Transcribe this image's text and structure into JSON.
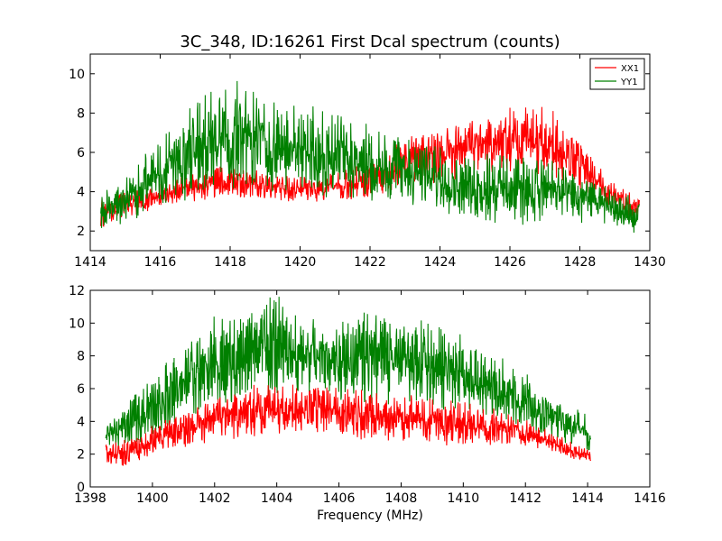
{
  "figure": {
    "title": "3C_348, ID:16261 First Dcal spectrum (counts)"
  },
  "chart_data": [
    {
      "type": "line",
      "title": "3C_348, ID:16261 First Dcal spectrum (counts)",
      "xlabel": "",
      "ylabel": "",
      "xlim": [
        1414,
        1430
      ],
      "ylim": [
        1,
        11
      ],
      "xticks": [
        1414,
        1416,
        1418,
        1420,
        1422,
        1424,
        1426,
        1428,
        1430
      ],
      "yticks": [
        2,
        4,
        6,
        8,
        10
      ],
      "legend": {
        "placement": "top-right",
        "entries": [
          "XX1",
          "YY1"
        ]
      },
      "series": [
        {
          "name": "XX1",
          "color": "#ff0000",
          "x_range": [
            1414.3,
            1429.7
          ],
          "envelope_x": [
            1414.3,
            1415,
            1416,
            1417,
            1418,
            1419,
            1420,
            1421,
            1422,
            1423,
            1424,
            1425,
            1426,
            1427,
            1428,
            1429,
            1429.7
          ],
          "envelope_low": [
            2.2,
            2.5,
            3.2,
            3.5,
            3.7,
            3.6,
            3.4,
            3.5,
            3.7,
            4.0,
            4.5,
            4.8,
            5.0,
            4.8,
            4.0,
            3.0,
            2.6
          ],
          "envelope_high": [
            3.8,
            4.0,
            4.5,
            5.0,
            5.4,
            5.0,
            4.8,
            5.0,
            5.5,
            6.8,
            7.3,
            7.8,
            8.3,
            8.6,
            6.5,
            4.5,
            3.7
          ]
        },
        {
          "name": "YY1",
          "color": "#008000",
          "x_range": [
            1414.3,
            1429.7
          ],
          "envelope_x": [
            1414.3,
            1415,
            1416,
            1417,
            1418,
            1419,
            1420,
            1421,
            1422,
            1423,
            1424,
            1425,
            1426,
            1427,
            1428,
            1429,
            1429.7
          ],
          "envelope_low": [
            2.0,
            2.4,
            3.0,
            3.6,
            4.0,
            4.0,
            3.8,
            3.6,
            3.5,
            3.3,
            3.0,
            2.4,
            2.2,
            2.4,
            2.4,
            2.3,
            1.7
          ],
          "envelope_high": [
            4.0,
            5.0,
            6.8,
            8.6,
            9.8,
            9.3,
            8.5,
            8.1,
            7.4,
            6.8,
            6.3,
            6.2,
            6.0,
            5.8,
            5.0,
            4.0,
            3.7
          ]
        }
      ]
    },
    {
      "type": "line",
      "title": "",
      "xlabel": "Frequency (MHz)",
      "ylabel": "",
      "xlim": [
        1398,
        1416
      ],
      "ylim": [
        0,
        12
      ],
      "xticks": [
        1398,
        1400,
        1402,
        1404,
        1406,
        1408,
        1410,
        1412,
        1414,
        1416
      ],
      "yticks": [
        0,
        2,
        4,
        6,
        8,
        10,
        12
      ],
      "series": [
        {
          "name": "YY1",
          "color": "#008000",
          "x_range": [
            1398.5,
            1414.1
          ],
          "envelope_x": [
            1398.5,
            1399,
            1400,
            1401,
            1402,
            1403,
            1404,
            1405,
            1406,
            1407,
            1408,
            1409,
            1410,
            1411,
            1412,
            1413,
            1414.1
          ],
          "envelope_low": [
            2.0,
            2.2,
            3.0,
            4.0,
            4.8,
            5.2,
            5.4,
            5.3,
            5.2,
            5.1,
            5.0,
            4.8,
            4.5,
            4.0,
            3.5,
            2.8,
            2.0
          ],
          "envelope_high": [
            4.2,
            5.0,
            6.6,
            8.8,
            10.5,
            10.8,
            11.8,
            10.5,
            10.8,
            10.8,
            10.6,
            10.0,
            9.4,
            8.2,
            7.0,
            5.5,
            4.4
          ]
        },
        {
          "name": "XX1",
          "color": "#ff0000",
          "x_range": [
            1398.5,
            1414.1
          ],
          "envelope_x": [
            1398.5,
            1399,
            1400,
            1401,
            1402,
            1403,
            1404,
            1405,
            1406,
            1407,
            1408,
            1409,
            1410,
            1411,
            1412,
            1413,
            1414.1
          ],
          "envelope_low": [
            1.5,
            1.2,
            1.8,
            2.4,
            2.8,
            3.0,
            3.2,
            3.3,
            3.0,
            2.8,
            2.8,
            2.5,
            2.4,
            2.5,
            2.5,
            2.0,
            1.4
          ],
          "envelope_high": [
            2.6,
            2.8,
            3.8,
            4.6,
            5.5,
            6.2,
            6.4,
            6.1,
            6.3,
            6.0,
            5.8,
            5.5,
            5.2,
            4.8,
            4.3,
            3.2,
            2.2
          ]
        }
      ]
    }
  ]
}
